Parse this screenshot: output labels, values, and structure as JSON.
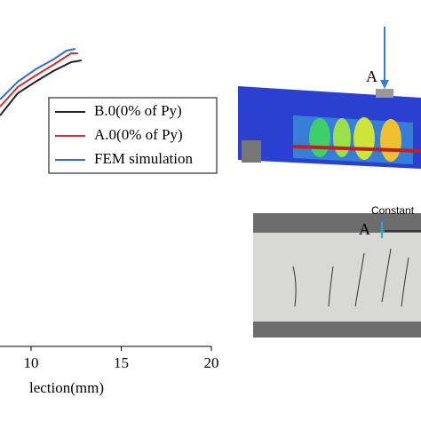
{
  "chart_data": {
    "type": "line",
    "x_label": "lection(mm)",
    "xlim": [
      0,
      20
    ],
    "xticks": [
      10,
      15,
      20
    ],
    "ylim": [
      0,
      360
    ],
    "legend": "upper-right",
    "series": [
      {
        "name": "B.0(0% of Py)",
        "color": "#222222",
        "x": [
          8.28,
          9.26,
          10.25,
          11.23,
          12.22,
          12.8
        ],
        "values": [
          260,
          285,
          298,
          310,
          320,
          322
        ]
      },
      {
        "name": "A.0(0% of Py)",
        "color": "#e0292b",
        "x": [
          8.28,
          9.26,
          10.25,
          11.23,
          12.22,
          12.6
        ],
        "values": [
          270,
          292,
          305,
          317,
          330,
          330
        ]
      },
      {
        "name": "FEM simulation",
        "color": "#2f6fd6",
        "x": [
          8.28,
          9.26,
          10.25,
          11.23,
          11.97,
          12.46
        ],
        "values": [
          278,
          298,
          312,
          323,
          333,
          335
        ]
      }
    ],
    "annotations": [
      "A",
      "Constant",
      "A"
    ]
  }
}
